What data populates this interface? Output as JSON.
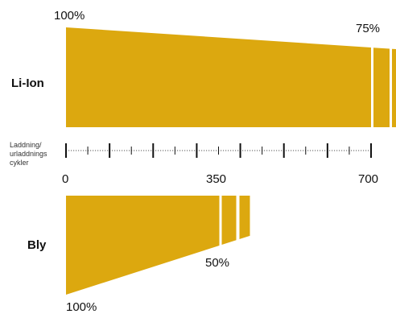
{
  "chart_data": {
    "type": "area",
    "xlabel_lines": [
      "Laddning/",
      "urladdnings",
      "cykler"
    ],
    "x_ticks": [
      "0",
      "350",
      "700"
    ],
    "xlim": [
      0,
      700
    ],
    "colors": {
      "fill": "#dca80f",
      "axis": "#111111",
      "dotted": "#555555"
    },
    "series": [
      {
        "name": "Li-Ion",
        "start_label": "100%",
        "end_label": "75%",
        "start_capacity": 100,
        "end_capacity": 75,
        "end_cycles": 700,
        "extra_segments": 2
      },
      {
        "name": "Bly",
        "start_label": "100%",
        "end_label": "50%",
        "start_capacity": 100,
        "end_capacity": 50,
        "end_cycles": 350,
        "extra_segments": 2
      }
    ]
  }
}
